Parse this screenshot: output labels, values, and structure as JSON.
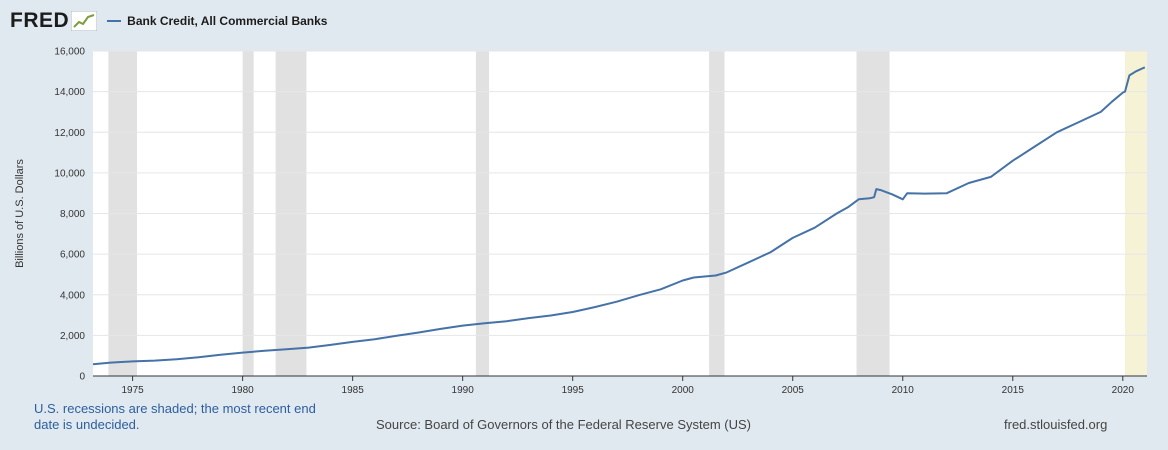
{
  "logo": {
    "text": "FRED"
  },
  "footer": {
    "note": "U.S. recessions are shaded; the most recent end date is undecided.",
    "source": "Source: Board of Governors of the Federal Reserve System (US)",
    "url": "fred.stlouisfed.org"
  },
  "colors": {
    "background": "#e1e9f0",
    "plot_background": "#ffffff",
    "series": "#4572a7",
    "recession": "#e1e1e1",
    "current_recession": "#f5f2d6"
  },
  "chart_data": {
    "type": "line",
    "ylabel": "Billions of U.S. Dollars",
    "xlim": [
      1973.2,
      2021.1
    ],
    "ylim": [
      0,
      16000
    ],
    "yticks": [
      0,
      2000,
      4000,
      6000,
      8000,
      10000,
      12000,
      14000,
      16000
    ],
    "ytick_labels": [
      "0",
      "2,000",
      "4,000",
      "6,000",
      "8,000",
      "10,000",
      "12,000",
      "14,000",
      "16,000"
    ],
    "xticks": [
      1975,
      1980,
      1985,
      1990,
      1995,
      2000,
      2005,
      2010,
      2015,
      2020
    ],
    "xtick_labels": [
      "1975",
      "1980",
      "1985",
      "1990",
      "1995",
      "2000",
      "2005",
      "2010",
      "2015",
      "2020"
    ],
    "grid": "horizontal",
    "legend": "top-left",
    "recessions": [
      [
        1973.9,
        1975.2
      ],
      [
        1980.0,
        1980.5
      ],
      [
        1981.5,
        1982.9
      ],
      [
        1990.6,
        1991.2
      ],
      [
        2001.2,
        2001.9
      ],
      [
        2007.9,
        2009.4
      ]
    ],
    "current_recession": [
      2020.1,
      2021.1
    ],
    "series": [
      {
        "name": "Bank Credit, All Commercial Banks",
        "x": [
          1973.2,
          1974,
          1975,
          1976,
          1977,
          1978,
          1979,
          1980,
          1981,
          1982,
          1983,
          1984,
          1985,
          1986,
          1987,
          1988,
          1989,
          1990,
          1991,
          1992,
          1993,
          1994,
          1995,
          1996,
          1997,
          1998,
          1999,
          2000,
          2000.5,
          2001,
          2001.5,
          2002,
          2003,
          2004,
          2005,
          2006,
          2007,
          2007.5,
          2008,
          2008.5,
          2008.7,
          2008.8,
          2009,
          2009.5,
          2010,
          2010.2,
          2011,
          2012,
          2013,
          2014,
          2015,
          2016,
          2017,
          2018,
          2019,
          2019.5,
          2020.0,
          2020.1,
          2020.3,
          2020.6,
          2021.0
        ],
        "values": [
          580,
          660,
          720,
          760,
          820,
          920,
          1050,
          1150,
          1240,
          1320,
          1400,
          1530,
          1680,
          1810,
          1980,
          2140,
          2320,
          2480,
          2600,
          2700,
          2850,
          2980,
          3150,
          3390,
          3660,
          3980,
          4270,
          4700,
          4850,
          4900,
          4950,
          5100,
          5600,
          6100,
          6800,
          7300,
          8000,
          8300,
          8700,
          8750,
          8800,
          9200,
          9150,
          8950,
          8700,
          9000,
          8980,
          9000,
          9500,
          9800,
          10600,
          11300,
          12000,
          12500,
          13000,
          13500,
          13950,
          14000,
          14800,
          15000,
          15200
        ]
      }
    ]
  }
}
